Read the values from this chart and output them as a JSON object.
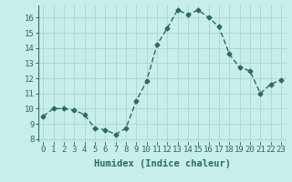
{
  "x": [
    0,
    1,
    2,
    3,
    4,
    5,
    6,
    7,
    8,
    9,
    10,
    11,
    12,
    13,
    14,
    15,
    16,
    17,
    18,
    19,
    20,
    21,
    22,
    23
  ],
  "y": [
    9.5,
    10.0,
    10.0,
    9.9,
    9.6,
    8.7,
    8.6,
    8.3,
    8.7,
    10.5,
    11.8,
    14.2,
    15.3,
    16.5,
    16.2,
    16.5,
    16.0,
    15.4,
    13.6,
    12.7,
    12.5,
    11.0,
    11.6,
    11.9
  ],
  "line_color": "#2d6b5e",
  "bg_color": "#c8eeea",
  "grid_color": "#b0d8d2",
  "xlabel": "Humidex (Indice chaleur)",
  "ylabel_ticks": [
    8,
    9,
    10,
    11,
    12,
    13,
    14,
    15,
    16
  ],
  "ylim": [
    7.8,
    16.8
  ],
  "xlim": [
    -0.5,
    23.5
  ],
  "marker": "D",
  "markersize": 2.5,
  "linewidth": 1.0,
  "xlabel_fontsize": 7.5,
  "tick_fontsize": 6.5
}
